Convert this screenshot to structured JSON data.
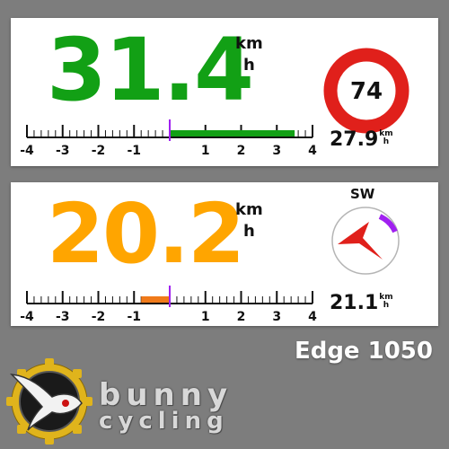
{
  "colors": {
    "background": "#7d7d7d",
    "speed_green": "#12a015",
    "speed_orange": "#ffa500",
    "bar_green": "#12a015",
    "bar_orange": "#f07a1a",
    "center_marker": "#a020f0",
    "sign_red": "#e0201b",
    "compass_arrow": "#e0201b",
    "compass_arc": "#a020f0"
  },
  "panel1": {
    "speed": "31.4",
    "unit_line1": "km",
    "unit_line2": "h",
    "scale_labels": [
      "-4",
      "-3",
      "-2",
      "-1",
      "1",
      "2",
      "3",
      "4"
    ],
    "bar_value": 3.5,
    "speed_limit": "74",
    "avg_speed": "27.9",
    "avg_unit_line1": "km",
    "avg_unit_line2": "h"
  },
  "panel2": {
    "speed": "20.2",
    "unit_line1": "km",
    "unit_line2": "h",
    "scale_labels": [
      "-4",
      "-3",
      "-2",
      "-1",
      "1",
      "2",
      "3",
      "4"
    ],
    "bar_value": -0.8,
    "heading": "SW",
    "avg_speed": "21.1",
    "avg_unit_line1": "km",
    "avg_unit_line2": "h"
  },
  "branding": {
    "device": "Edge 1050",
    "logo_word1": "bunny",
    "logo_word2": "cycling",
    "icon": "rabbit-gear-logo"
  }
}
